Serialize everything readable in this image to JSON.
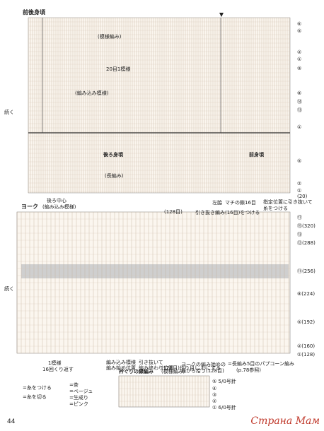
{
  "page_number": "44",
  "watermark": "Страна Мам",
  "back_front": {
    "title": "前後身頃",
    "pattern_label": "(模様編み)",
    "count_20": "20目1模様",
    "pattern_label2": "(編み込み模様)",
    "back_label": "後ろ身頃",
    "back_sub": "(長編み)",
    "front_label": "前身頃",
    "left_mark": "続く",
    "row_labels": [
      "⑥",
      "⑤",
      "②",
      "①",
      "⑨",
      "⑧",
      "⑭",
      "⑬",
      "①",
      "⑤",
      "②",
      "①",
      "(20)"
    ]
  },
  "yoke": {
    "title": "ヨーク",
    "sub": "(編み込み模様)",
    "center_back": "後ろ中心",
    "count_128": "(128目)",
    "notes": [
      "引き抜き編み(16目)をつける",
      "指定位置に引き抜いて",
      "糸をつける",
      "左脇",
      "マチの鎖16目"
    ],
    "left_mark": "続く",
    "row_labels": [
      "⑰",
      "⑮(320)",
      "⑬",
      "⑫(288)",
      "⑪(256)",
      "⑧(224)",
      "⑤(192)",
      "②(160)",
      "①(128)"
    ]
  },
  "bottom": {
    "repeat_1": "1模様",
    "repeat_16": "16回くり返す",
    "edge_label": "衿ぐりの縁編み",
    "edge_sub": "(模様編み)",
    "yoke_pick": "ヨークの編み始めの",
    "yoke_pick2": "鎖から拾う(128目)",
    "knit_in_start": "編み込み模様",
    "knit_in_pos": "編み始め位置",
    "knit_in_pos2": "引き抜いて",
    "knit_in_end": "編み終わり位置",
    "knit_in_end2": "(128目)作り目し,わにする",
    "popcorn": "=長編み5目のパプコーン編み",
    "popcorn_ref": "(p.78参照)"
  },
  "legend": {
    "attach": "=糸をつける",
    "cut": "=糸を切る",
    "colors": [
      "=茶",
      "=ベージュ",
      "=生成り",
      "=ピンク"
    ]
  },
  "edge_rows": [
    "⑤ 5/0号針",
    "④",
    "③",
    "②",
    "① 6/0号針"
  ]
}
